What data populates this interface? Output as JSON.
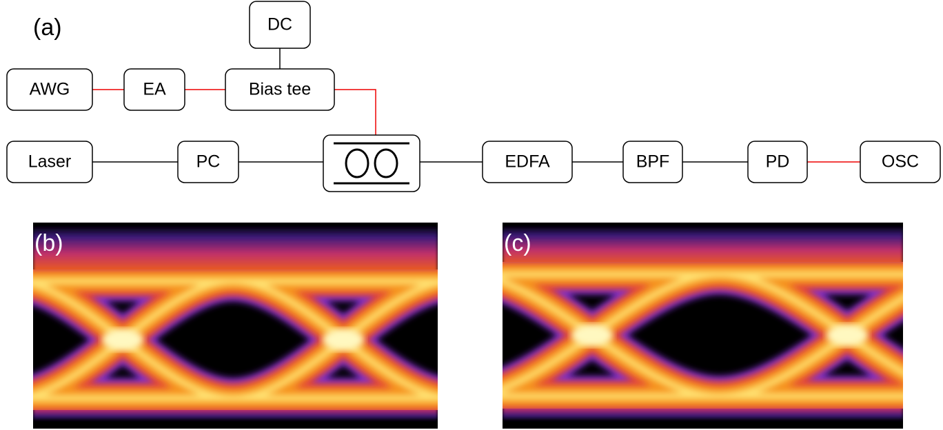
{
  "labels": {
    "a": "(a)",
    "b": "(b)",
    "c": "(c)"
  },
  "nodes": [
    {
      "label": "DC"
    },
    {
      "label": "AWG"
    },
    {
      "label": "EA"
    },
    {
      "label": "Bias tee"
    },
    {
      "label": "Laser"
    },
    {
      "label": "PC"
    },
    {
      "label": "EDFA"
    },
    {
      "label": "BPF"
    },
    {
      "label": "PD"
    },
    {
      "label": "OSC"
    }
  ]
}
